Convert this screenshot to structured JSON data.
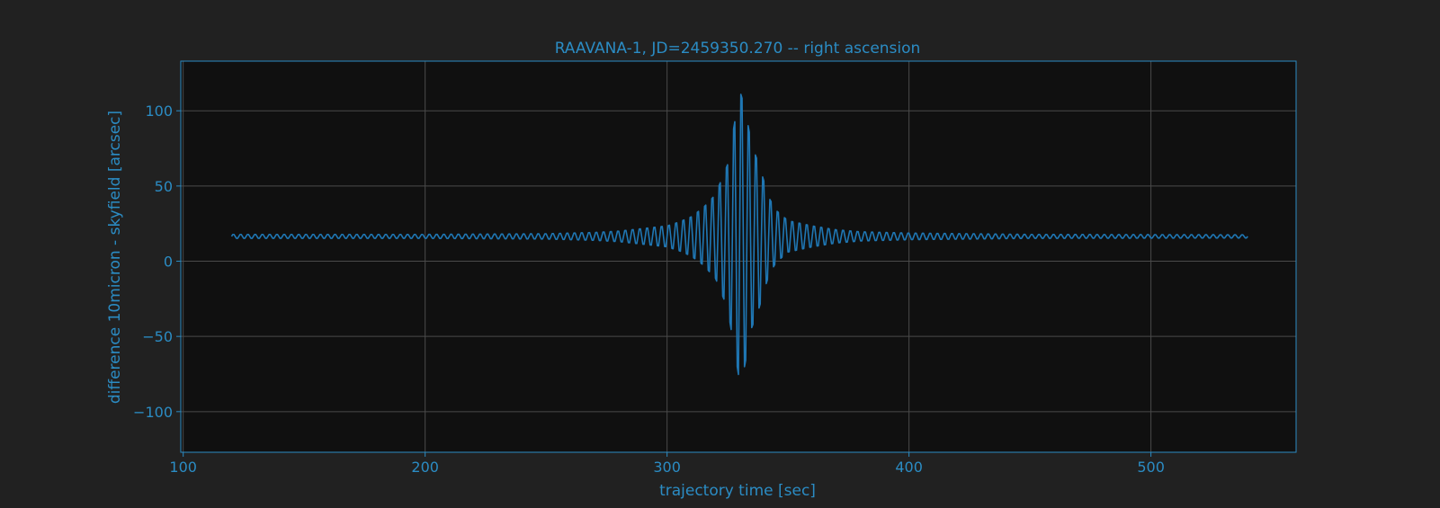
{
  "chart_data": {
    "type": "line",
    "title": "RAAVANA-1, JD=2459350.270 -- right ascension",
    "xlabel": "trajectory time [sec]",
    "ylabel": "difference 10micron - skyfield [arcsec]",
    "xlim": [
      99,
      560
    ],
    "ylim": [
      -127,
      133
    ],
    "xticks": [
      100,
      200,
      300,
      400,
      500
    ],
    "yticks": [
      100,
      50,
      0,
      -50,
      -100
    ],
    "xtick_labels": [
      "100",
      "200",
      "300",
      "400",
      "500"
    ],
    "ytick_labels": [
      "100",
      "50",
      "0",
      "−50",
      "−100"
    ],
    "grid": true,
    "legend": "none",
    "series": [
      {
        "x_start": 120,
        "x_end": 540,
        "sample_step": 0.5,
        "baseline": 16.5,
        "oscillation_period_sec": 3.0,
        "envelope_points": [
          [
            120,
            1.5
          ],
          [
            200,
            1.5
          ],
          [
            250,
            2
          ],
          [
            270,
            3
          ],
          [
            280,
            4
          ],
          [
            290,
            6
          ],
          [
            300,
            8
          ],
          [
            305,
            11
          ],
          [
            310,
            15
          ],
          [
            315,
            22
          ],
          [
            320,
            32
          ],
          [
            325,
            55
          ],
          [
            328,
            88
          ],
          [
            330,
            112
          ],
          [
            332,
            100
          ],
          [
            335,
            70
          ],
          [
            338,
            55
          ],
          [
            342,
            30
          ],
          [
            345,
            20
          ],
          [
            350,
            12
          ],
          [
            360,
            8
          ],
          [
            370,
            5
          ],
          [
            380,
            3.5
          ],
          [
            400,
            2.5
          ],
          [
            450,
            1.5
          ],
          [
            540,
            1.2
          ]
        ],
        "color": "#1f77b4"
      }
    ]
  },
  "colors": {
    "figure_bg": "#212121",
    "axes_bg": "#101010",
    "grid": "#4a4a4a",
    "text": "#2b8cc4",
    "spine": "#2b8cc4",
    "line": "#1f77b4"
  }
}
